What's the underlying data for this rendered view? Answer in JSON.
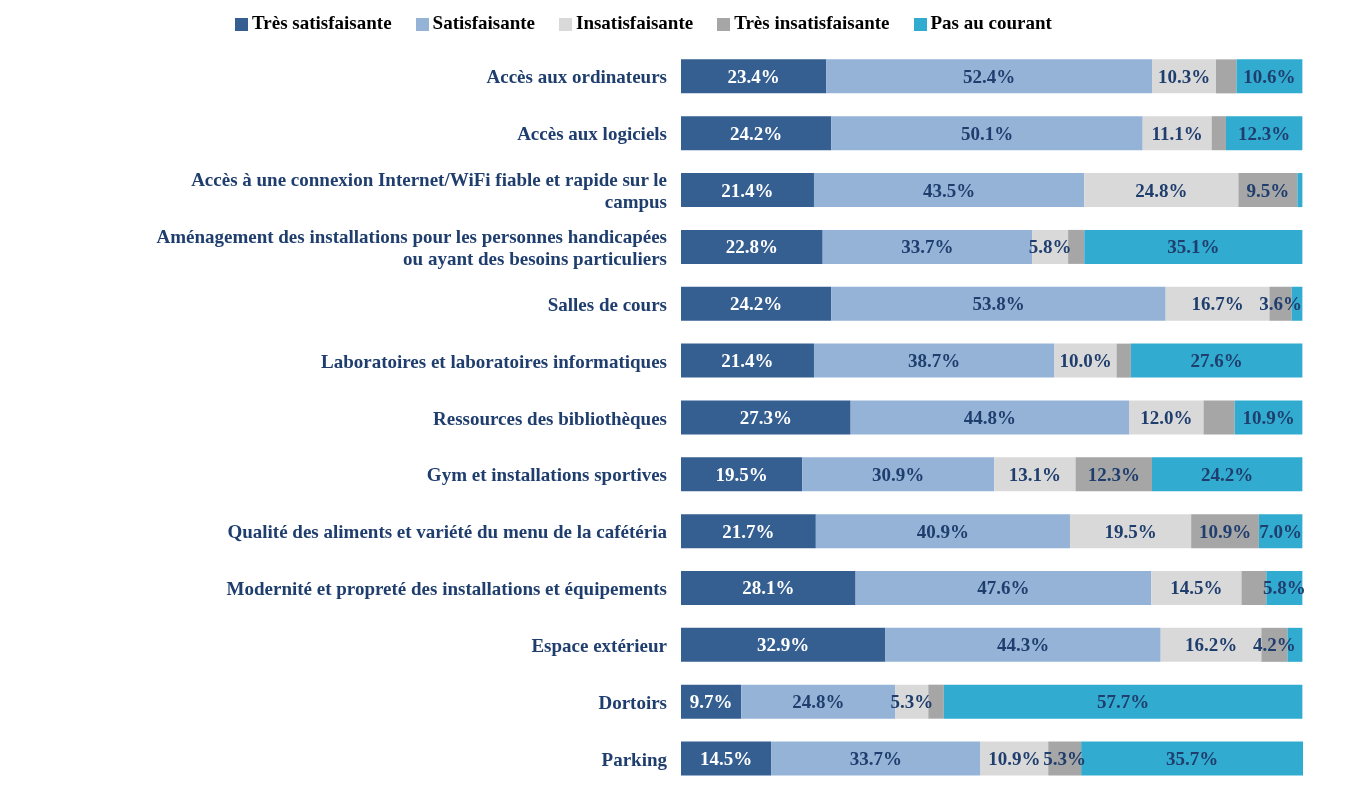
{
  "chart_data": {
    "type": "bar",
    "orientation": "horizontal",
    "stacked": true,
    "legend": "top",
    "categories": [
      "Accès aux ordinateurs",
      "Accès aux logiciels",
      "Accès à une connexion Internet/WiFi fiable et rapide sur le campus",
      "Aménagement des installations pour les personnes handicapées ou ayant des besoins particuliers",
      "Salles de cours",
      "Laboratoires et laboratoires informatiques",
      "Ressources des bibliothèques",
      "Gym et installations sportives",
      "Qualité des aliments et variété du menu de la cafétéria",
      "Modernité et propreté des installations et équipements",
      "Espace extérieur",
      "Dortoirs",
      "Parking"
    ],
    "series": [
      {
        "name": "Très satisfaisante",
        "color": "#355f91",
        "values": [
          23.4,
          24.2,
          21.4,
          22.8,
          24.2,
          21.4,
          27.3,
          19.5,
          21.7,
          28.1,
          32.9,
          9.7,
          14.5
        ],
        "value_labels": [
          "23.4%",
          "24.2%",
          "21.4%",
          "22.8%",
          "24.2%",
          "21.4%",
          "27.3%",
          "19.5%",
          "21.7%",
          "28.1%",
          "32.9%",
          "9.7%",
          "14.5%"
        ]
      },
      {
        "name": "Satisfaisante",
        "color": "#95b3d7",
        "values": [
          52.4,
          50.1,
          43.5,
          33.7,
          53.8,
          38.7,
          44.8,
          30.9,
          40.9,
          47.6,
          44.3,
          24.8,
          33.7
        ],
        "value_labels": [
          "52.4%",
          "50.1%",
          "43.5%",
          "33.7%",
          "53.8%",
          "38.7%",
          "44.8%",
          "30.9%",
          "40.9%",
          "47.6%",
          "44.3%",
          "24.8%",
          "33.7%"
        ]
      },
      {
        "name": "Insatisfaisante",
        "color": "#d9d9d9",
        "values": [
          10.3,
          11.1,
          24.8,
          5.8,
          16.7,
          10.0,
          12.0,
          13.1,
          19.5,
          14.5,
          16.2,
          5.3,
          10.9
        ],
        "value_labels": [
          "10.3%",
          "11.1%",
          "24.8%",
          "5.8%",
          "16.7%",
          "10.0%",
          "12.0%",
          "13.1%",
          "19.5%",
          "14.5%",
          "16.2%",
          "5.3%",
          "10.9%"
        ]
      },
      {
        "name": "Très insatisfaisante",
        "color": "#a6a6a6",
        "values": [
          3.3,
          2.3,
          9.5,
          2.6,
          3.6,
          2.3,
          5.0,
          12.3,
          10.9,
          4.0,
          4.2,
          2.5,
          5.3
        ],
        "value_labels": [
          null,
          null,
          "9.5%",
          null,
          "3.6%",
          null,
          null,
          "12.3%",
          "10.9%",
          null,
          "4.2%",
          null,
          "5.3%"
        ]
      },
      {
        "name": "Pas au courant",
        "color": "#31acd0",
        "values": [
          10.6,
          12.3,
          0.8,
          35.1,
          1.7,
          27.6,
          10.9,
          24.2,
          7.0,
          5.8,
          2.4,
          57.7,
          35.7
        ],
        "value_labels": [
          "10.6%",
          "12.3%",
          null,
          "35.1%",
          null,
          "27.6%",
          "10.9%",
          "24.2%",
          "7.0%",
          "5.8%",
          null,
          "57.7%",
          "35.7%"
        ]
      }
    ]
  }
}
